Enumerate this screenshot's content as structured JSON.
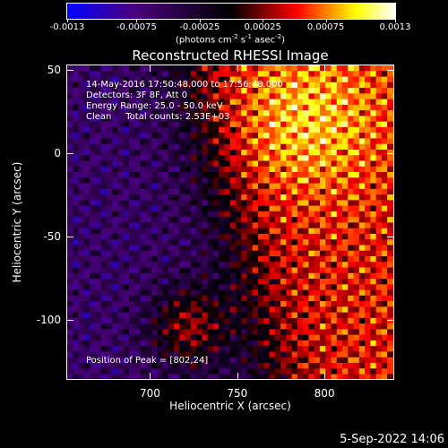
{
  "colorbar": {
    "tick_labels": [
      "-0.0013",
      "-0.00075",
      "-0.00025",
      "0.00025",
      "0.00075",
      "0.0013"
    ],
    "tick_values": [
      -0.0013,
      -0.00075,
      -0.00025,
      0.00025,
      0.00075,
      0.0013
    ],
    "range": [
      -0.0013,
      0.0013
    ],
    "units_prefix": "(photons cm",
    "units_exp1": "-2",
    "units_mid": " s",
    "units_exp2": "-1",
    "units_mid2": " asec",
    "units_exp3": "-2",
    "units_suffix": ")",
    "colormap": [
      "#0000ff",
      "#4b0080",
      "#000000",
      "#ff0000",
      "#ffff00",
      "#ffffff"
    ]
  },
  "title": "Reconstructed RHESSI Image",
  "info": {
    "line1": "14-May-2016 17:50:48.000 to 17:56:48.000",
    "line2": "Detectors: 3F 8F, Att 0",
    "line3": "Energy Range: 25.0 - 50.0 keV",
    "line4": "Clean     Total counts: 2.53E+03",
    "peak": "Position of Peak = [802,24]"
  },
  "datestamp": "5-Sep-2022 14:06",
  "chart_data": {
    "type": "heatmap",
    "title": "Reconstructed RHESSI Image",
    "xlabel": "Heliocentric X (arcsec)",
    "ylabel": "Heliocentric Y (arcsec)",
    "xlim": [
      652,
      840
    ],
    "ylim": [
      -136,
      53
    ],
    "x_ticks": [
      700,
      750,
      800
    ],
    "x_tick_labels": [
      "700",
      "750",
      "800"
    ],
    "y_ticks": [
      50,
      0,
      -50,
      -100
    ],
    "y_tick_labels": [
      "50",
      "0",
      "-50",
      "-100"
    ],
    "value_range": [
      -0.0013,
      0.0013
    ],
    "peak": [
      802,
      24
    ],
    "grid": false
  }
}
